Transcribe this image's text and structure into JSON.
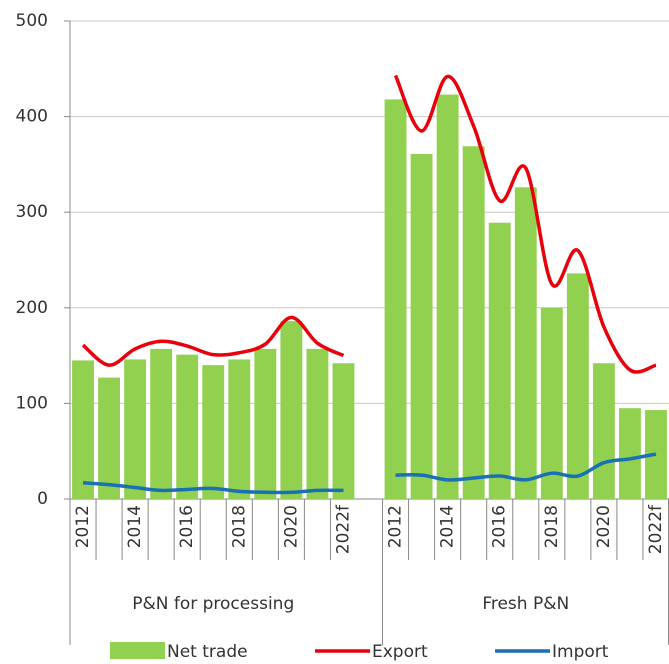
{
  "chart_data": {
    "type": "bar",
    "ylim": [
      0,
      500
    ],
    "yticks": [
      0,
      100,
      200,
      300,
      400,
      500
    ],
    "grid": true,
    "series": [
      {
        "name": "Net trade",
        "color": "#92d050",
        "type": "bar"
      },
      {
        "name": "Export",
        "color": "#e8000b",
        "type": "line"
      },
      {
        "name": "Import",
        "color": "#1a6fb5",
        "type": "line"
      }
    ],
    "groups": [
      {
        "label": "P&N for processing",
        "categories": [
          "2012",
          null,
          "2014",
          null,
          "2016",
          null,
          "2018",
          null,
          "2020",
          null,
          "2022f"
        ],
        "values": [
          [
            145,
            127,
            146,
            157,
            151,
            140,
            146,
            157,
            186,
            157,
            142
          ],
          [
            161,
            140,
            157,
            165,
            160,
            151,
            153,
            162,
            190,
            163,
            150
          ],
          [
            17,
            15,
            12,
            9,
            10,
            11,
            8,
            7,
            7,
            9,
            9
          ]
        ]
      },
      {
        "label": "Fresh P&N",
        "categories": [
          "2012",
          null,
          "2014",
          null,
          "2016",
          null,
          "2018",
          null,
          "2020",
          null,
          "2022f"
        ],
        "values": [
          [
            418,
            361,
            423,
            369,
            289,
            326,
            200,
            236,
            142,
            95,
            93
          ],
          [
            443,
            385,
            442,
            390,
            312,
            346,
            225,
            260,
            180,
            135,
            140
          ],
          [
            25,
            25,
            20,
            22,
            24,
            20,
            27,
            24,
            38,
            42,
            47
          ]
        ]
      }
    ]
  }
}
